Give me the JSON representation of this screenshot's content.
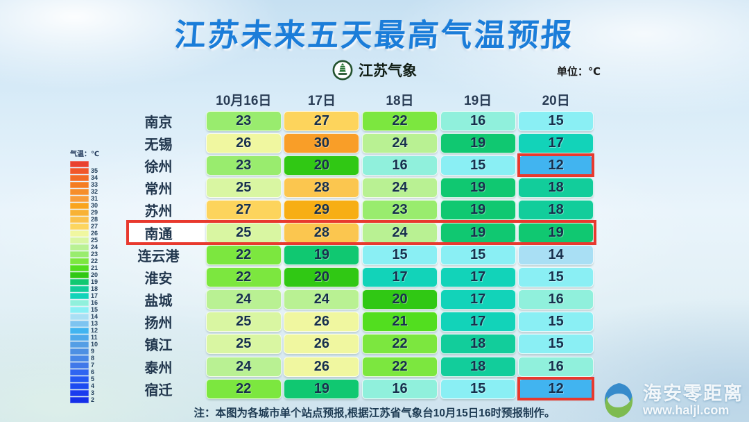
{
  "title": "江苏未来五天最高气温预报",
  "logo": {
    "text": "江苏气象"
  },
  "unit_label": "单位：℃",
  "chart_data": {
    "type": "heatmap",
    "title": "江苏未来五天最高气温预报",
    "unit": "℃",
    "columns": [
      "10月16日",
      "17日",
      "18日",
      "19日",
      "20日"
    ],
    "rows": [
      "南京",
      "无锡",
      "徐州",
      "常州",
      "苏州",
      "南通",
      "连云港",
      "淮安",
      "盐城",
      "扬州",
      "镇江",
      "泰州",
      "宿迁"
    ],
    "values": [
      [
        23,
        27,
        22,
        16,
        15
      ],
      [
        26,
        30,
        24,
        19,
        17
      ],
      [
        23,
        20,
        16,
        15,
        12
      ],
      [
        25,
        28,
        24,
        19,
        18
      ],
      [
        27,
        29,
        23,
        19,
        18
      ],
      [
        25,
        28,
        24,
        19,
        19
      ],
      [
        22,
        19,
        15,
        15,
        14
      ],
      [
        22,
        20,
        17,
        17,
        15
      ],
      [
        24,
        24,
        20,
        17,
        16
      ],
      [
        25,
        26,
        21,
        17,
        15
      ],
      [
        25,
        26,
        22,
        18,
        15
      ],
      [
        24,
        26,
        22,
        18,
        16
      ],
      [
        22,
        19,
        16,
        15,
        12
      ]
    ],
    "highlighted_row": "南通",
    "highlighted_cells": [
      {
        "row": "徐州",
        "column": "20日"
      },
      {
        "row": "宿迁",
        "column": "20日"
      }
    ],
    "value_range": [
      2,
      35
    ],
    "legend_position": "left"
  },
  "legend": {
    "title": "气温：℃",
    "entries": [
      {
        "label": "",
        "color": "#E9412F"
      },
      {
        "label": "35",
        "color": "#F0572A"
      },
      {
        "label": "34",
        "color": "#F26B26"
      },
      {
        "label": "33",
        "color": "#F47D22"
      },
      {
        "label": "32",
        "color": "#F68E2B"
      },
      {
        "label": "31",
        "color": "#F89D3B"
      },
      {
        "label": "30",
        "color": "#F9A41E"
      },
      {
        "label": "29",
        "color": "#F8B235"
      },
      {
        "label": "28",
        "color": "#FAC24D"
      },
      {
        "label": "27",
        "color": "#FCD55F"
      },
      {
        "label": "26",
        "color": "#F0F7A0"
      },
      {
        "label": "25",
        "color": "#D9F6A2"
      },
      {
        "label": "24",
        "color": "#B9F193"
      },
      {
        "label": "23",
        "color": "#99EC6E"
      },
      {
        "label": "22",
        "color": "#7CE73F"
      },
      {
        "label": "21",
        "color": "#52DE1F"
      },
      {
        "label": "20",
        "color": "#30C814"
      },
      {
        "label": "19",
        "color": "#10C871"
      },
      {
        "label": "18",
        "color": "#12CD9B"
      },
      {
        "label": "17",
        "color": "#12D3B9"
      },
      {
        "label": "16",
        "color": "#90F0DC"
      },
      {
        "label": "15",
        "color": "#8AEFF4"
      },
      {
        "label": "14",
        "color": "#A9DFF4"
      },
      {
        "label": "13",
        "color": "#7EC4F0"
      },
      {
        "label": "12",
        "color": "#41B4F0"
      },
      {
        "label": "11",
        "color": "#4FA9EA"
      },
      {
        "label": "10",
        "color": "#549EE5"
      },
      {
        "label": "9",
        "color": "#4D90E3"
      },
      {
        "label": "8",
        "color": "#4787E7"
      },
      {
        "label": "7",
        "color": "#4078E9"
      },
      {
        "label": "6",
        "color": "#2F65F1"
      },
      {
        "label": "5",
        "color": "#2458F2"
      },
      {
        "label": "4",
        "color": "#1D4BF0"
      },
      {
        "label": "3",
        "color": "#1A3BEE"
      },
      {
        "label": "2",
        "color": "#1530E8"
      }
    ]
  },
  "note": "注：本图为各城市单个站点预报,根据江苏省气象台10月15日16时预报制作。",
  "watermark": {
    "name": "海安零距离",
    "url": "www.haljl.com"
  },
  "colors": {
    "title_blue": "#1B7DD9",
    "highlight_red": "#E8392E",
    "header_text": "#2A3D55",
    "cell_text": "#17304D",
    "value_colors": {
      "12": "#41B4F0",
      "14": "#A9DFF4",
      "15": "#8AEFF4",
      "16": "#90F0DC",
      "17": "#12D3B9",
      "18": "#12CD9B",
      "19": "#10C871",
      "20": "#30C814",
      "21": "#52DE1F",
      "22": "#7CE73F",
      "23": "#99EC6E",
      "24": "#B9F193",
      "25": "#D9F6A2",
      "26": "#F0F7A0",
      "27": "#FDD45C",
      "28": "#FBC64F",
      "29": "#F7AE14",
      "30": "#F99E28"
    }
  }
}
